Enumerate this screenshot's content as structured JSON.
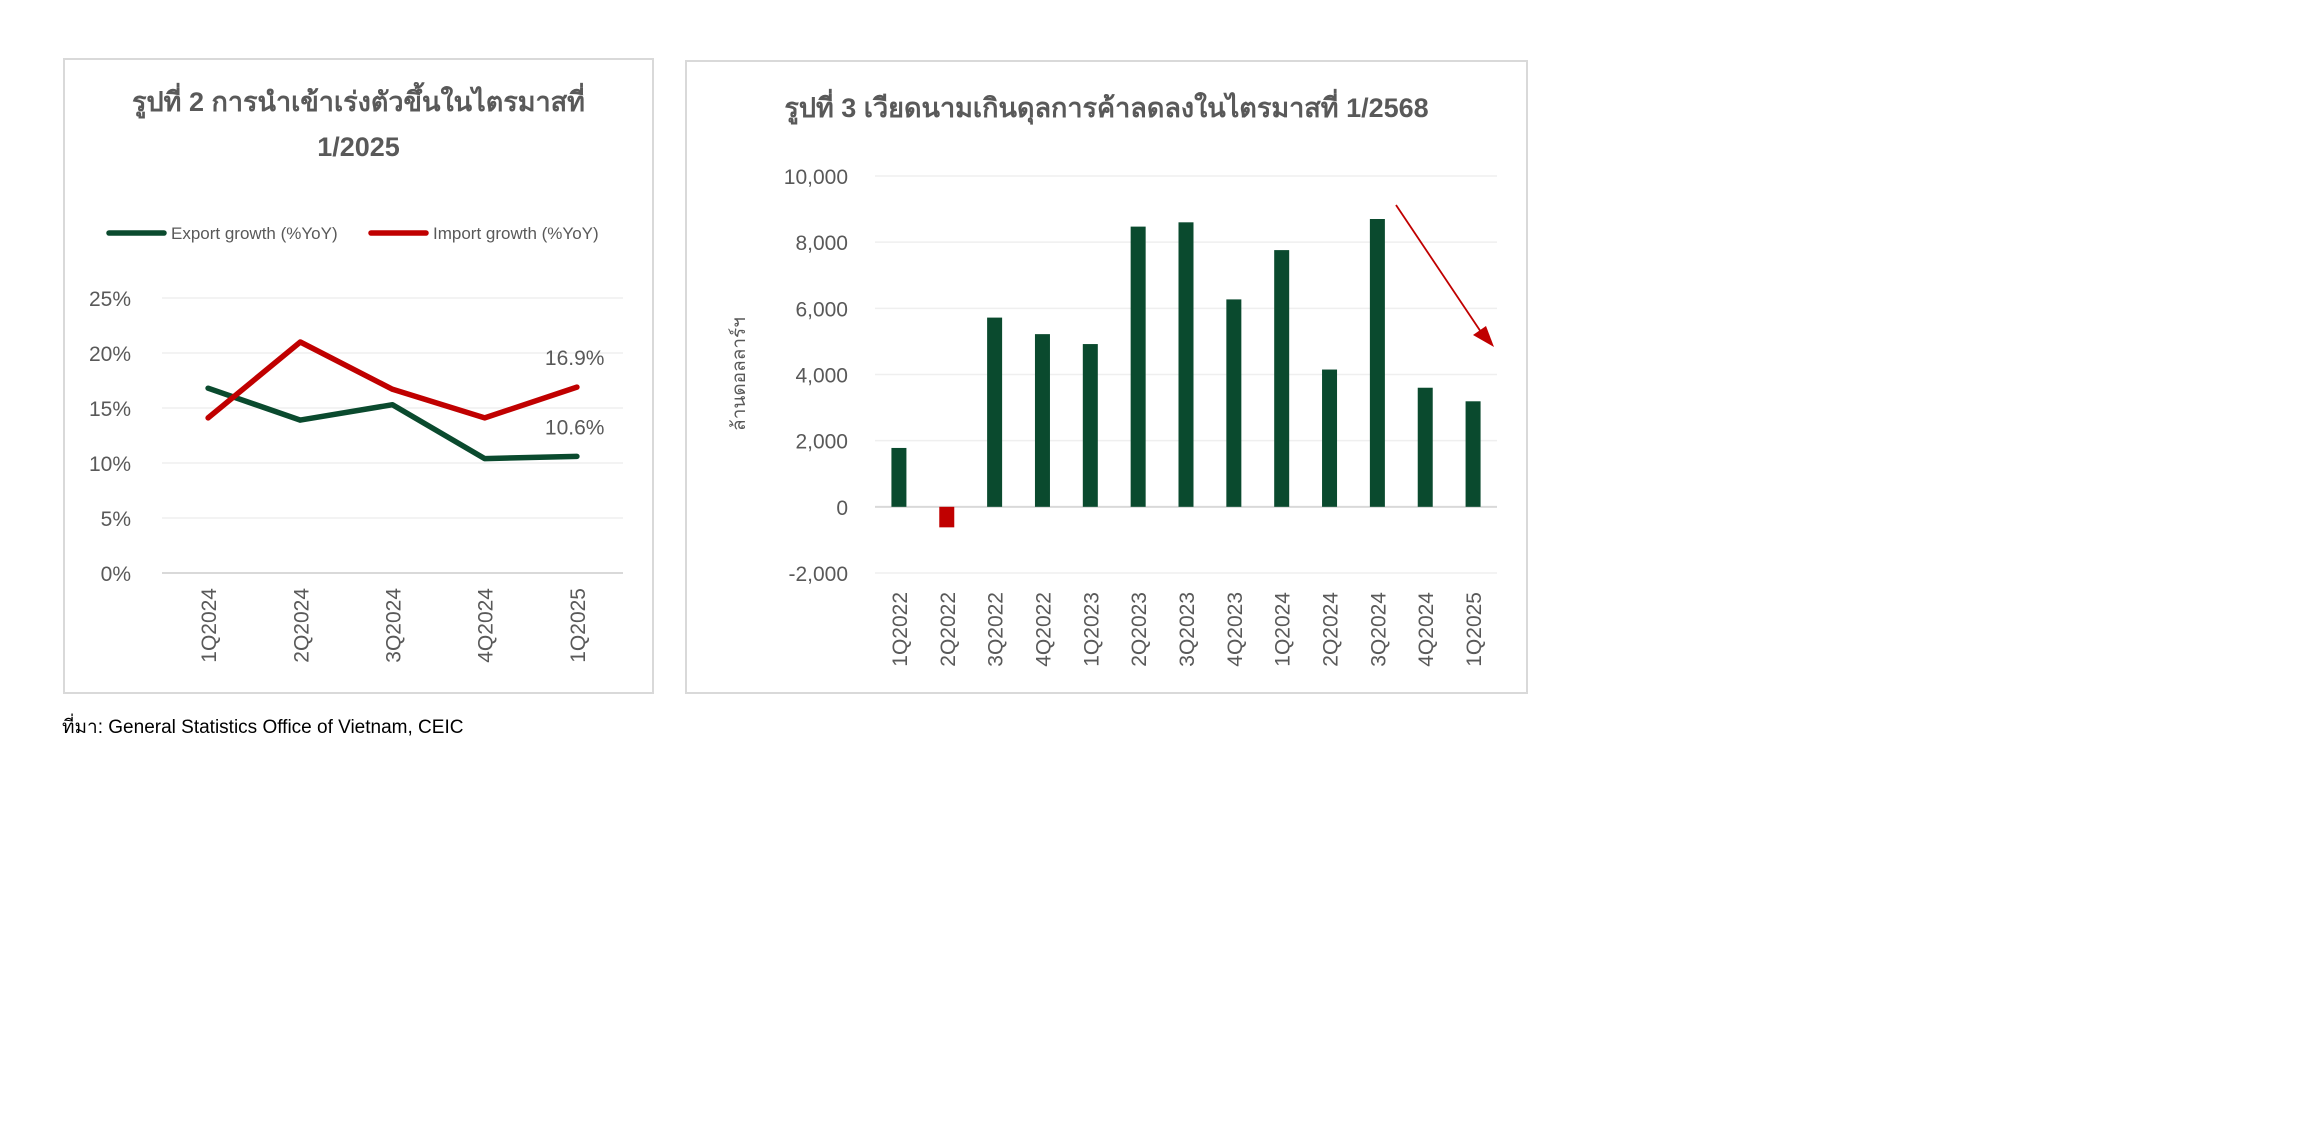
{
  "source_note": "ที่มา: General Statistics Office of Vietnam, CEIC",
  "chart_data": [
    {
      "type": "line",
      "title": "รูปที่ 2 การนำเข้าเร่งตัวขึ้นในไตรมาสที่ 1/2025",
      "categories": [
        "1Q2024",
        "2Q2024",
        "3Q2024",
        "4Q2024",
        "1Q2025"
      ],
      "series": [
        {
          "name": "Export growth (%YoY)",
          "color": "#0a4a2e",
          "values": [
            16.8,
            13.9,
            15.3,
            10.4,
            10.6
          ]
        },
        {
          "name": "Import growth (%YoY)",
          "color": "#c00000",
          "values": [
            14.1,
            21.0,
            16.7,
            14.1,
            16.9
          ]
        }
      ],
      "data_labels": [
        {
          "series": "Import growth (%YoY)",
          "category": "1Q2025",
          "text": "16.9%"
        },
        {
          "series": "Export growth (%YoY)",
          "category": "1Q2025",
          "text": "10.6%"
        }
      ],
      "ylim": [
        0,
        25
      ],
      "yticks": [
        "0%",
        "5%",
        "10%",
        "15%",
        "20%",
        "25%"
      ],
      "ytick_values": [
        0,
        5,
        10,
        15,
        20,
        25
      ],
      "grid": true,
      "legend": "top"
    },
    {
      "type": "bar",
      "title": "รูปที่ 3 เวียดนามเกินดุลการค้าลดลงในไตรมาสที่ 1/2568",
      "ylabel": "ล้านดอลลาร์ฯ",
      "categories": [
        "1Q2022",
        "2Q2022",
        "3Q2022",
        "4Q2022",
        "1Q2023",
        "2Q2023",
        "3Q2023",
        "4Q2023",
        "1Q2024",
        "2Q2024",
        "3Q2024",
        "4Q2024",
        "1Q2025"
      ],
      "values": [
        1780,
        -620,
        5720,
        5220,
        4920,
        8470,
        8600,
        6270,
        7760,
        4150,
        8700,
        3600,
        3190
      ],
      "positive_color": "#0a4a2e",
      "negative_color": "#c00000",
      "ylim": [
        -2000,
        10000
      ],
      "yticks": [
        "-2,000",
        "0",
        "2,000",
        "4,000",
        "6,000",
        "8,000",
        "10,000"
      ],
      "ytick_values": [
        -2000,
        0,
        2000,
        4000,
        6000,
        8000,
        10000
      ],
      "grid": true,
      "annotation": {
        "type": "arrow",
        "direction": "down-right",
        "color": "#c00000"
      }
    }
  ]
}
